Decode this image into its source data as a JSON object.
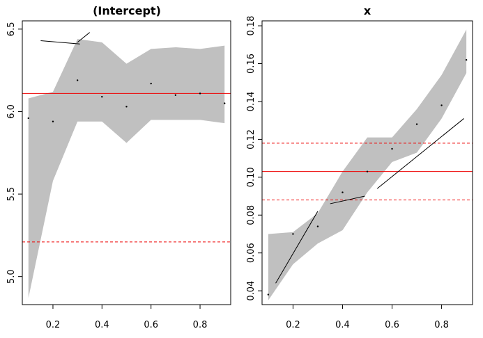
{
  "chart_data": [
    {
      "type": "line",
      "title": "(Intercept)",
      "xlabel": "",
      "ylabel": "",
      "xlim": [
        0.075,
        0.925
      ],
      "ylim": [
        4.83,
        6.55
      ],
      "xticks": [
        0.2,
        0.4,
        0.6,
        0.8
      ],
      "xtick_labels": [
        "0.2",
        "0.4",
        "0.6",
        "0.8"
      ],
      "yticks": [
        5.0,
        5.5,
        6.0,
        6.5
      ],
      "ytick_labels": [
        "5.0",
        "5.5",
        "6.0",
        "6.5"
      ],
      "band": {
        "x": [
          0.1,
          0.2,
          0.3,
          0.4,
          0.5,
          0.6,
          0.7,
          0.8,
          0.9
        ],
        "lower": [
          4.87,
          5.58,
          5.94,
          5.94,
          5.81,
          5.95,
          5.95,
          5.95,
          5.93
        ],
        "upper": [
          6.08,
          6.12,
          6.44,
          6.42,
          6.29,
          6.38,
          6.39,
          6.38,
          6.4
        ]
      },
      "points": {
        "x": [
          0.1,
          0.2,
          0.3,
          0.4,
          0.5,
          0.6,
          0.7,
          0.8,
          0.9
        ],
        "y": [
          5.96,
          5.94,
          6.19,
          6.09,
          6.03,
          6.17,
          6.1,
          6.11,
          6.05
        ]
      },
      "line_segments": [
        {
          "x": [
            0.15,
            0.31
          ],
          "y": [
            6.43,
            6.41
          ]
        },
        {
          "x": [
            0.3,
            0.35
          ],
          "y": [
            6.42,
            6.48
          ]
        }
      ],
      "hlines": [
        {
          "y": 6.11,
          "style": "solid",
          "color": "#ee0000"
        },
        {
          "y": 5.21,
          "style": "dashed",
          "color": "#ee0000"
        }
      ]
    },
    {
      "type": "line",
      "title": "x",
      "xlabel": "",
      "ylabel": "",
      "xlim": [
        0.075,
        0.925
      ],
      "ylim": [
        0.0327,
        0.1826
      ],
      "xticks": [
        0.2,
        0.4,
        0.6,
        0.8
      ],
      "xtick_labels": [
        "0.2",
        "0.4",
        "0.6",
        "0.8"
      ],
      "yticks": [
        0.04,
        0.06,
        0.08,
        0.1,
        0.12,
        0.14,
        0.16,
        0.18
      ],
      "ytick_labels": [
        "0.04",
        "0.06",
        "0.08",
        "0.10",
        "0.12",
        "0.14",
        "0.16",
        "0.18"
      ],
      "band": {
        "x": [
          0.1,
          0.2,
          0.3,
          0.4,
          0.5,
          0.6,
          0.7,
          0.8,
          0.9
        ],
        "lower": [
          0.035,
          0.054,
          0.065,
          0.072,
          0.092,
          0.108,
          0.113,
          0.131,
          0.155
        ],
        "upper": [
          0.07,
          0.071,
          0.081,
          0.103,
          0.121,
          0.121,
          0.136,
          0.154,
          0.178
        ]
      },
      "points": {
        "x": [
          0.1,
          0.2,
          0.3,
          0.4,
          0.5,
          0.6,
          0.7,
          0.8,
          0.9
        ],
        "y": [
          0.038,
          0.07,
          0.074,
          0.092,
          0.103,
          0.115,
          0.128,
          0.138,
          0.162
        ]
      },
      "line_segments": [
        {
          "x": [
            0.13,
            0.3
          ],
          "y": [
            0.044,
            0.082
          ]
        },
        {
          "x": [
            0.35,
            0.49
          ],
          "y": [
            0.086,
            0.09
          ]
        },
        {
          "x": [
            0.54,
            0.89
          ],
          "y": [
            0.094,
            0.131
          ]
        }
      ],
      "hlines": [
        {
          "y": 0.118,
          "style": "dashed",
          "color": "#ee0000"
        },
        {
          "y": 0.103,
          "style": "solid",
          "color": "#ee0000"
        },
        {
          "y": 0.088,
          "style": "dashed",
          "color": "#ee0000"
        }
      ]
    }
  ],
  "colors": {
    "band": "#c0c0c0",
    "reference_line": "#ee0000",
    "axis": "#000000"
  }
}
